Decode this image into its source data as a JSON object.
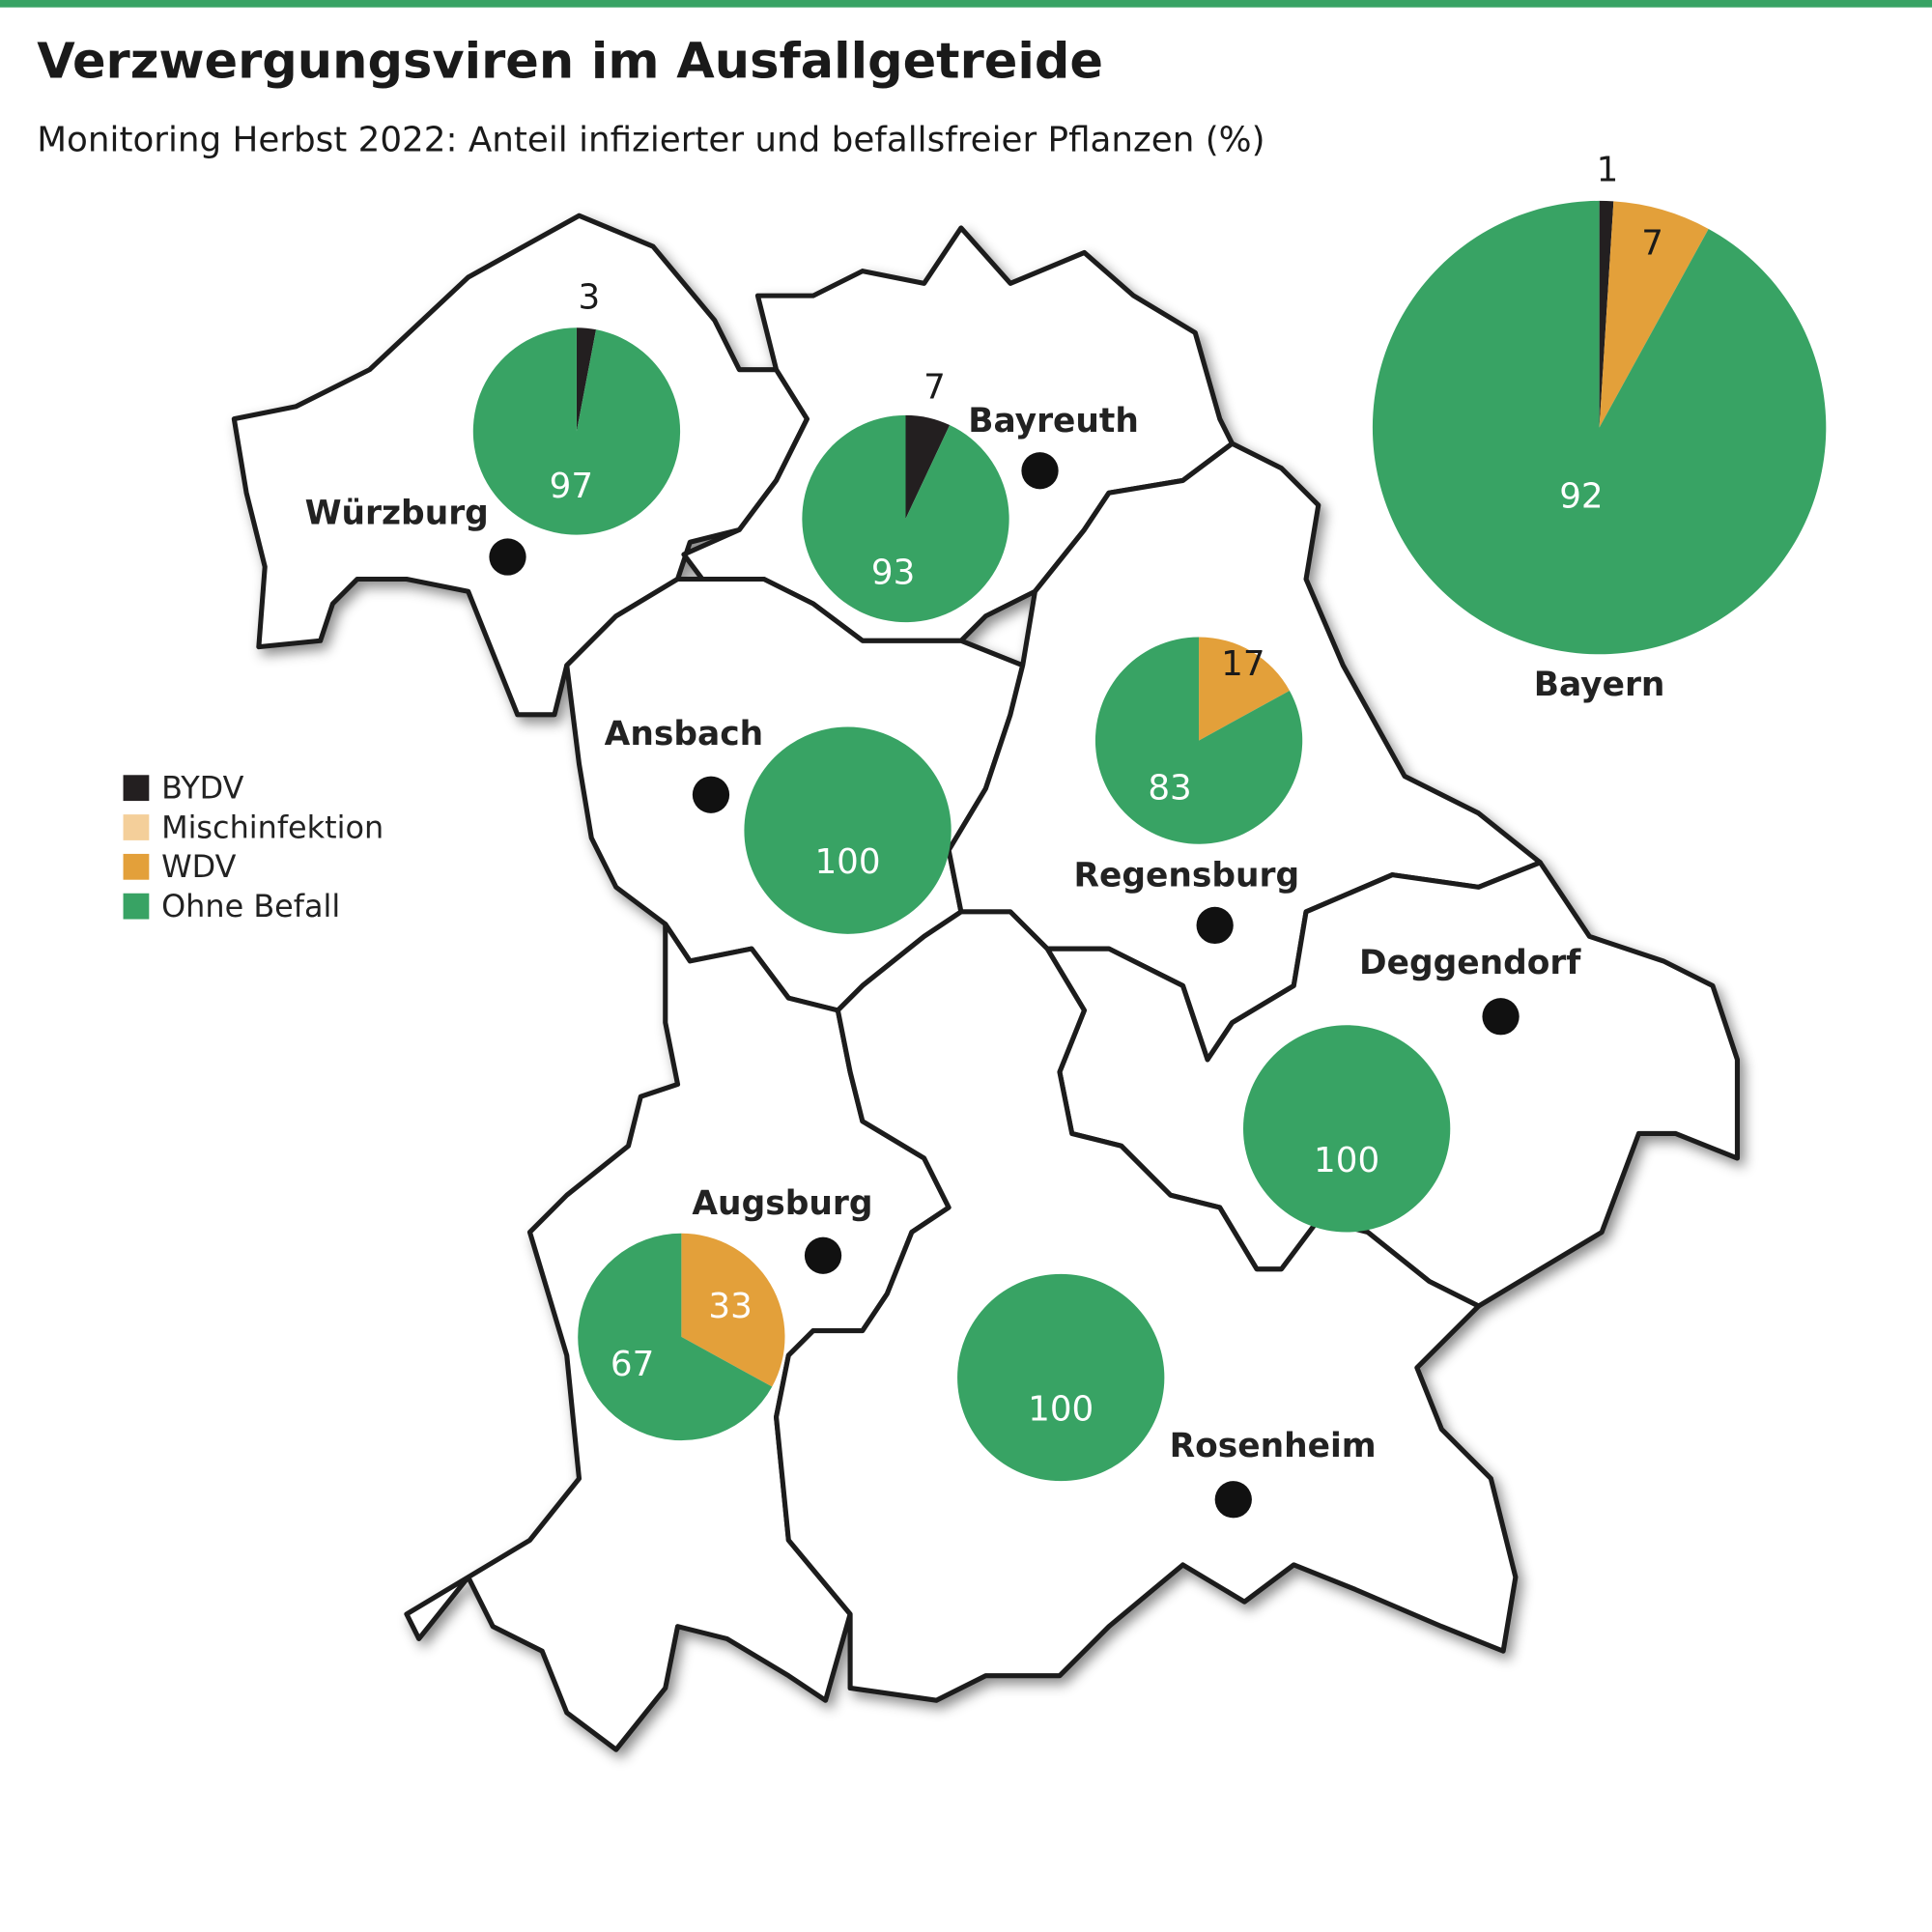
{
  "chart_data": {
    "type": "pie",
    "title": "Verzwergungsviren im Ausfallgetreide",
    "subtitle": "Monitoring Herbst 2022: Anteil infizierter und befallsfreier Pflanzen (%)",
    "categories": [
      "Würzburg",
      "Bayreuth",
      "Ansbach",
      "Regensburg",
      "Deggendorf",
      "Augsburg",
      "Rosenheim",
      "Bayern"
    ],
    "series": [
      {
        "name": "BYDV",
        "color": "#231f20",
        "values": [
          3,
          7,
          0,
          0,
          0,
          0,
          0,
          1
        ]
      },
      {
        "name": "Mischinfektion",
        "color": "#f4cf9a",
        "values": [
          0,
          0,
          0,
          0,
          0,
          0,
          0,
          0
        ]
      },
      {
        "name": "WDV",
        "color": "#e3a03a",
        "values": [
          0,
          0,
          0,
          17,
          0,
          33,
          0,
          7
        ]
      },
      {
        "name": "Ohne Befall",
        "color": "#38a364",
        "values": [
          97,
          93,
          100,
          83,
          100,
          67,
          100,
          92
        ]
      }
    ]
  }
}
